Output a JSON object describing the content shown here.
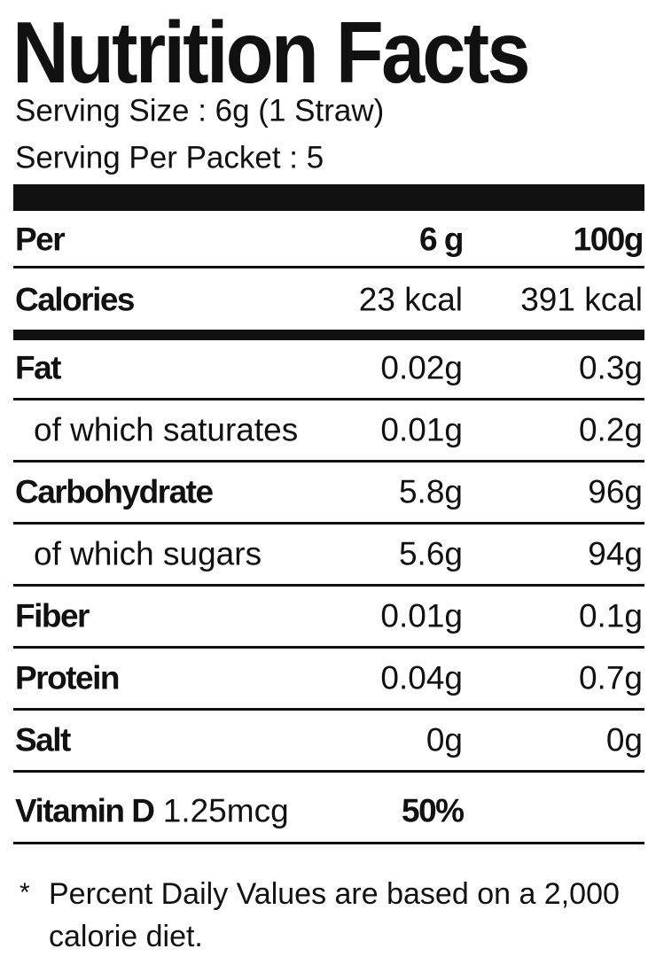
{
  "header": {
    "title": "Nutrition Facts",
    "serving_size": "Serving Size : 6g (1 Straw)",
    "servings": "Serving Per Packet : 5"
  },
  "table": {
    "columns": [
      "Per",
      "6 g",
      "100g"
    ],
    "rows": [
      [
        "Calories",
        "23 kcal",
        "391 kcal"
      ],
      [
        "Fat",
        "0.02g",
        "0.3g"
      ],
      [
        "of which saturates",
        "0.01g",
        "0.2g"
      ],
      [
        "Carbohydrate",
        "5.8g",
        "96g"
      ],
      [
        "of which sugars",
        "5.6g",
        "94g"
      ],
      [
        "Fiber",
        "0.01g",
        "0.1g"
      ],
      [
        "Protein",
        "0.04g",
        "0.7g"
      ],
      [
        "Salt",
        "0g",
        "0g"
      ]
    ]
  },
  "vitamin": {
    "name": "Vitamin D",
    "amount": "1.25mcg",
    "percent": "50%"
  },
  "footnote": {
    "mark": "*",
    "text": "Percent Daily Values are based on a 2,000 calorie diet."
  }
}
